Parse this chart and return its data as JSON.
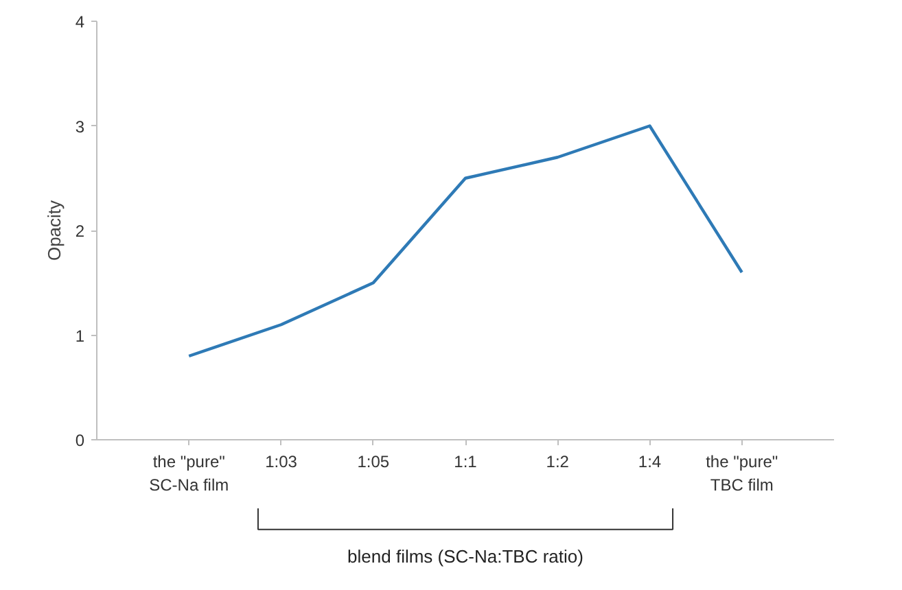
{
  "chart_data": {
    "type": "line",
    "ylabel": "Opacity",
    "categories": [
      "the \"pure\"\nSC-Na film",
      "1:03",
      "1:05",
      "1:1",
      "1:2",
      "1:4",
      "the \"pure\"\nTBC film"
    ],
    "series": [
      {
        "color": "#2e7ab6",
        "values": [
          0.8,
          1.1,
          1.5,
          2.5,
          2.7,
          3.0,
          1.6
        ]
      }
    ],
    "ylim": [
      0,
      4
    ],
    "yticks": [
      0,
      1,
      2,
      3,
      4
    ],
    "grid": false,
    "marker": "none",
    "line_style": "solid",
    "annotations": [
      "blend films (SC-Na:TBC ratio)"
    ]
  }
}
